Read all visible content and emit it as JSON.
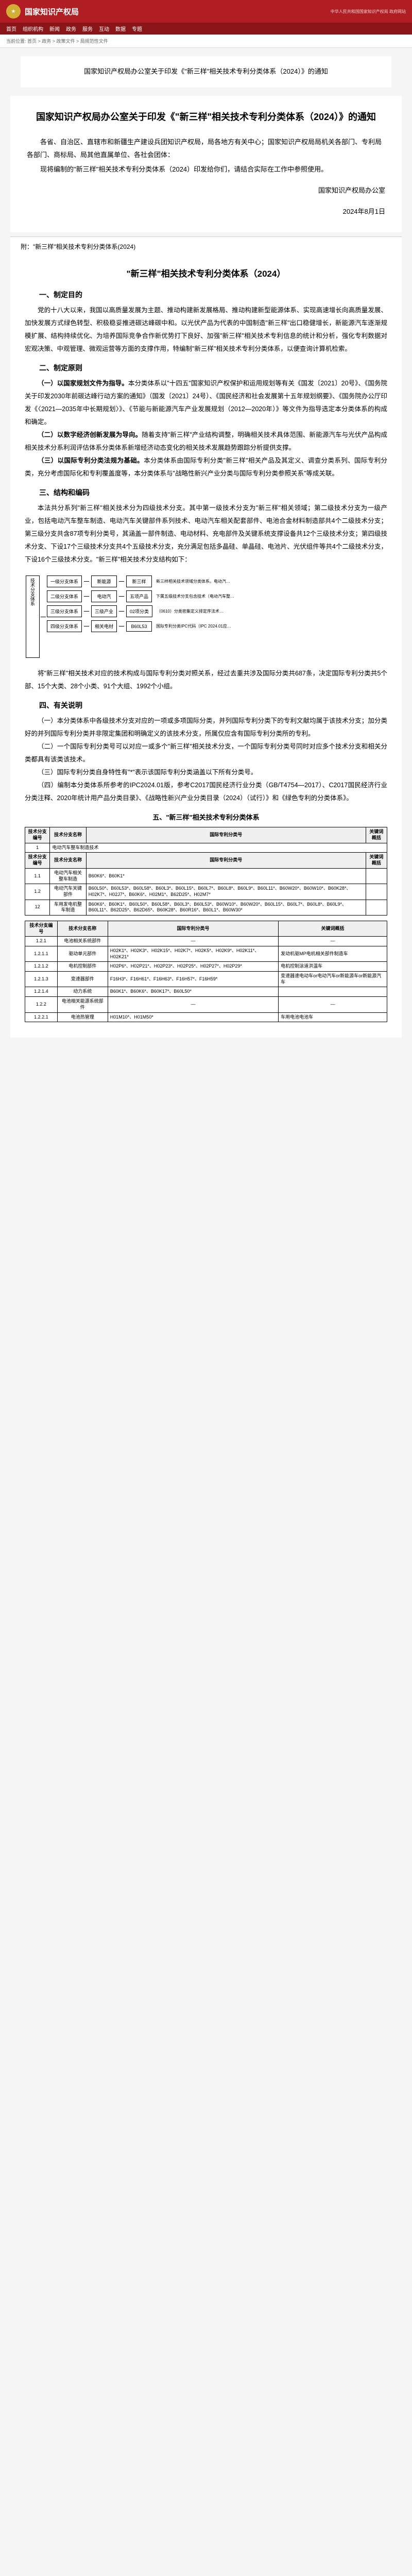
{
  "header": {
    "site_name": "国家知识产权局",
    "sub_info": "中华人民共和国国家知识产权局 政府网站"
  },
  "nav": [
    "首页",
    "组织机构",
    "新闻",
    "政务",
    "服务",
    "互动",
    "数据",
    "专题"
  ],
  "breadcrumb": "当前位置: 首页 > 政务 > 政策文件 > 局规范性文件",
  "title_box": "国家知识产权局办公室关于印发《\"新三样\"相关技术专利分类体系（2024）》的通知",
  "notice": {
    "heading": "国家知识产权局办公室关于印发《\"新三样\"相关技术专利分类体系（2024）》的通知",
    "para1": "各省、自治区、直辖市和新疆生产建设兵团知识产权局，局各地方有关中心；国家知识产权局局机关各部门、专利局各部门、商标局、局其他直属单位、各社会团体：",
    "para2": "现将编制的\"新三样\"相关技术专利分类体系（2024）印发给你们，请结合实际在工作中参照使用。",
    "sign1": "国家知识产权局办公室",
    "sign2": "2024年8月1日"
  },
  "attach_label": "附：\"新三样\"相关技术专利分类体系(2024)",
  "doc": {
    "title": "\"新三样\"相关技术专利分类体系（2024）",
    "s1_h": "一、制定目的",
    "s1_p1": "党的十八大以来，我国以高质量发展为主题、推动构建新发展格局、推动构建新型能源体系、实现高速增长向高质量发展、加快发展方式绿色转型、积极稳妥推进碳达峰碳中和。以光伏产品为代表的中国制造\"新三样\"出口稳健增长，新能源汽车逐渐规模扩展、结构持续优化、为培养国际竞争合作新优势打下良好、加强\"新三样\"相关技术专利信息的统计和分析，强化专利数据对宏观决策、中观管理、微观运营等方面的支撑作用，特编制\"新三样\"相关技术专利分类体系，以便查询计算机检索。",
    "s2_h": "二、制定原则",
    "s2_1h": "（一）以国家规划文件为指导。",
    "s2_1p": "本分类体系以\"十四五\"国家知识产权保护和运用规划等有关《国发〔2021〕20号》、《国务院关于印发2030年前碳达峰行动方案的通知》（国发〔2021〕24号）、《国民经济和社会发展第十五年规划纲要》、《国务院办公厅印发《〈2021—2035年中长期规划〉》、《节能与新能源汽车产业发展规划（2012—2020年）》等文件为指导选定本分类体系的构成和确定。",
    "s2_2h": "（二）以数字经济创新发展为导向。",
    "s2_2p": "随着支持\"新三样\"产业结构调整，明确相关技术具体范围、新能源汽车与光伏产品构成相关技术分系利润评估体系分类体系新增经济动态变化的相关技术发展趋势跟踪分析提供支撑。",
    "s2_3h": "（三）以国际专利分类法规为基础。",
    "s2_3p": "本分类体系由国际专利分类\"新三样\"相关产品及其定义、调查分类系列、国际专利分类，充分考虑国际化和专利覆盖度等，本分类体系与\"战略性新兴产业分类与国际专利分类参照关系\"等成关联。",
    "s3_h": "三、结构和编码",
    "s3_p1": "本法共分系列\"新三样\"相关技术分为四级技术分支。其中第一级技术分支为\"新三样\"相关领域；第二级技术分支为一级产业，包括电动汽车整车制造、电动汽车关键部件系列技术、电动汽车相关配套部件、电池合金材料制造部共4个二级技术分支；第三级分支共含87项专利分类号，其涵盖一部件制造、电动材料、充电部件及关键系统支撑设备共12个三级技术分支；第四级技术分支、下设17个三级技术分支共4个五级技术分支，充分满足包括多晶硅、单晶硅、电池片、光伏组件等共4个二级技术分支，下设16个三级技术分支。\"新三样\"相关技术分支结构如下：",
    "diagram": {
      "level1": "技术分支体系",
      "rows": [
        {
          "l2": "一级分支体系",
          "l3": "新能源",
          "l4": "新三样",
          "desc": "新三样相关技术领域分类体系。电动汽…"
        },
        {
          "l2": "二级分支体系",
          "l3": "电动汽",
          "l4": "五项产品",
          "desc": "下属五级技术分支包含技术（电动汽车整…"
        },
        {
          "l2": "三级分支体系",
          "l3": "三级产业",
          "l4": "02项分类",
          "desc": "（0610）分类密集定义排定序法术…"
        },
        {
          "l2": "四级分支体系",
          "l3": "相关电材",
          "l4": "B60L53",
          "desc": "国际专利分类IPC代码（IPC 2024.01应…"
        }
      ]
    },
    "s3_p2": "将\"新三样\"相关技术对应的技术构成与国际专利分类对照关系，经过去重共涉及国际分类共687条，决定国际专利分类共5个部、15个大类、28个小类、91个大组、1992个小组。",
    "s4_h": "四、有关说明",
    "s4_1": "（一）本分类体系中各级技术分支对应的一项或多项国际分类，并列国际专利分类下的专利文献均属于该技术分支；加分类好的并列国际专利分类并非限定集团和明确定义的该技术分支，所属仅应含有国际专利分类所的专利。",
    "s4_2": "（二）一个国际专利分类号可以对应一或多个\"新三样\"相关技术分支，一个国际专利分类号同时对应多个技术分支和相关分类都具有该类该技术。",
    "s4_3": "（三）国际专利分类自身特性有\"*\"表示该国际专利分类涵盖以下所有分类号。",
    "s4_4": "（四）编制本分类体系所参考的IPC2024.01版，参考C2017国民经济行业分类（GB/T4754—2017）、C2017国民经济行业分类注释、2020年统计用产品分类目录》、《战略性新兴产业分类目录（2024）（试行）》和《绿色专利的分类体系》。",
    "s5_h": "五、\"新三样\"相关技术专利分类体系"
  },
  "table1": {
    "headers": [
      "技术分支编号",
      "技术分支名称",
      "国际专利分类号",
      "关键词概括"
    ],
    "row1_c1": "1",
    "row1_c2": "电动汽车整车制造技术",
    "sub_headers": [
      "技术分支编号",
      "技术分支名称",
      "国际专利分类号",
      "关键词概括"
    ],
    "rows": [
      {
        "c1": "1.1",
        "c2": "电动汽车相关整车制造",
        "c3": "B60K6*、B60K1*",
        "c4": ""
      },
      {
        "c1": "1.2",
        "c2": "电动汽车关键部件",
        "c3": "B60L50*、B60L53*、B60L58*、B60L3*、B60L15*、B60L7*、B60L8*、B60L9*、B60L11*、B60W20*、B60W10*、B60K28*、H02K7*、H02J7*、B60K6*、H02M1*、B62D25*、H02M7*",
        "c4": ""
      },
      {
        "c1": "12",
        "c2": "车用发电机整车制造",
        "c3": "B60K6*、B60K1*、B60L50*、B60L58*、B60L3*、B60L53*、B60W10*、B60W20*、B60L15*、B60L7*、B60L8*、B60L9*、B60L11*、B62D25*、B62D65*、B60K28*、B60R16*、B60L1*、B60W30*",
        "c4": ""
      }
    ]
  },
  "table2": {
    "headers": [
      "技术分支编号",
      "技术分支名称",
      "国际专利分类号",
      "关键词概括"
    ],
    "rows": [
      {
        "c1": "1.2.1",
        "c2": "电池相关系统部件",
        "c3": "—",
        "c4": "—"
      },
      {
        "c1": "1.2.1.1",
        "c2": "驱动单元部件",
        "c3": "H02K1*、H02K3*、H02K15*、H02K7*、H02K5*、H02K9*、H02K11*、H02K21*",
        "c4": "发动机驱MP电机相关部件制造车"
      },
      {
        "c1": "1.2.1.2",
        "c2": "电机控制部件",
        "c3": "H02P6*、H02P21*、H02P23*、H02P25*、H02P27*、H02P29*",
        "c4": "电机控制涂道洪温车"
      },
      {
        "c1": "1.2.1.3",
        "c2": "变速器部件",
        "c3": "F16H3*、F16H61*、F16H63*、F16H57*、F16H59*",
        "c4": "变速器速电动车or电动汽车or新能源车or新能源汽车"
      },
      {
        "c1": "1.2.1.4",
        "c2": "动力系统",
        "c3": "B60K1*、B60K6*、B60K17*、B60L50*",
        "c4": ""
      },
      {
        "c1": "1.2.2",
        "c2": "电池相关能源系统部件",
        "c3": "—",
        "c4": "—"
      },
      {
        "c1": "1.2.2.1",
        "c2": "电池热管理",
        "c3": "H01M10*、H01M50*",
        "c4": "车用电池电池车"
      }
    ]
  }
}
